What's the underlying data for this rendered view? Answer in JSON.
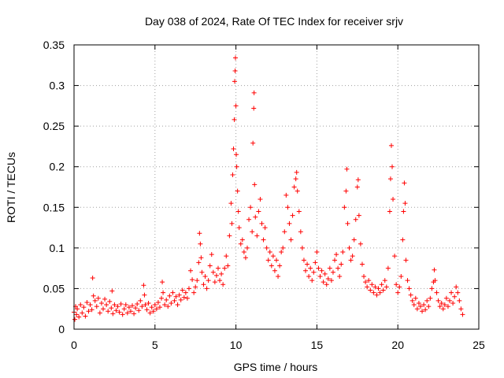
{
  "chart_data": {
    "type": "scatter",
    "title": "Day 038 of 2024, Rate Of TEC Index for receiver srjv",
    "xlabel": "GPS time / hours",
    "ylabel": "ROTI / TECUs",
    "xlim": [
      0,
      25
    ],
    "ylim": [
      0,
      0.35
    ],
    "grid": true,
    "marker": "+",
    "color": "#ff0000",
    "x_ticks": [
      0,
      5,
      10,
      15,
      20,
      25
    ],
    "x_tick_labels": [
      "0",
      "5",
      "10",
      "15",
      "20",
      "25"
    ],
    "y_ticks": [
      0,
      0.05,
      0.1,
      0.15,
      0.2,
      0.25,
      0.3,
      0.35
    ],
    "y_tick_labels": [
      "0",
      "0.05",
      "0.1",
      "0.15",
      "0.2",
      "0.25",
      "0.3",
      "0.35"
    ],
    "series": [
      {
        "name": "ROTI",
        "points": [
          [
            0.0,
            0.021
          ],
          [
            0.05,
            0.012
          ],
          [
            0.1,
            0.028
          ],
          [
            0.15,
            0.018
          ],
          [
            0.2,
            0.025
          ],
          [
            0.3,
            0.015
          ],
          [
            0.4,
            0.03
          ],
          [
            0.5,
            0.02
          ],
          [
            0.6,
            0.027
          ],
          [
            0.7,
            0.016
          ],
          [
            0.8,
            0.033
          ],
          [
            0.9,
            0.022
          ],
          [
            1.0,
            0.03
          ],
          [
            1.1,
            0.024
          ],
          [
            1.15,
            0.063
          ],
          [
            1.2,
            0.041
          ],
          [
            1.3,
            0.035
          ],
          [
            1.4,
            0.028
          ],
          [
            1.5,
            0.038
          ],
          [
            1.6,
            0.02
          ],
          [
            1.7,
            0.032
          ],
          [
            1.8,
            0.025
          ],
          [
            1.9,
            0.037
          ],
          [
            2.0,
            0.03
          ],
          [
            2.1,
            0.022
          ],
          [
            2.2,
            0.034
          ],
          [
            2.3,
            0.026
          ],
          [
            2.35,
            0.047
          ],
          [
            2.4,
            0.019
          ],
          [
            2.5,
            0.03
          ],
          [
            2.6,
            0.023
          ],
          [
            2.7,
            0.028
          ],
          [
            2.8,
            0.021
          ],
          [
            2.9,
            0.031
          ],
          [
            3.0,
            0.018
          ],
          [
            3.1,
            0.025
          ],
          [
            3.2,
            0.03
          ],
          [
            3.3,
            0.02
          ],
          [
            3.4,
            0.027
          ],
          [
            3.5,
            0.022
          ],
          [
            3.6,
            0.029
          ],
          [
            3.7,
            0.019
          ],
          [
            3.8,
            0.026
          ],
          [
            3.9,
            0.031
          ],
          [
            4.0,
            0.023
          ],
          [
            4.1,
            0.035
          ],
          [
            4.2,
            0.028
          ],
          [
            4.3,
            0.054
          ],
          [
            4.35,
            0.042
          ],
          [
            4.4,
            0.03
          ],
          [
            4.5,
            0.024
          ],
          [
            4.6,
            0.032
          ],
          [
            4.7,
            0.02
          ],
          [
            4.8,
            0.027
          ],
          [
            4.9,
            0.022
          ],
          [
            5.0,
            0.03
          ],
          [
            5.1,
            0.025
          ],
          [
            5.2,
            0.033
          ],
          [
            5.3,
            0.027
          ],
          [
            5.4,
            0.038
          ],
          [
            5.45,
            0.058
          ],
          [
            5.5,
            0.045
          ],
          [
            5.6,
            0.03
          ],
          [
            5.7,
            0.036
          ],
          [
            5.8,
            0.028
          ],
          [
            5.9,
            0.041
          ],
          [
            6.0,
            0.032
          ],
          [
            6.1,
            0.045
          ],
          [
            6.2,
            0.035
          ],
          [
            6.3,
            0.04
          ],
          [
            6.4,
            0.03
          ],
          [
            6.5,
            0.042
          ],
          [
            6.6,
            0.036
          ],
          [
            6.7,
            0.048
          ],
          [
            6.8,
            0.039
          ],
          [
            6.9,
            0.045
          ],
          [
            7.0,
            0.038
          ],
          [
            7.1,
            0.05
          ],
          [
            7.2,
            0.072
          ],
          [
            7.3,
            0.061
          ],
          [
            7.4,
            0.045
          ],
          [
            7.5,
            0.052
          ],
          [
            7.6,
            0.06
          ],
          [
            7.7,
            0.082
          ],
          [
            7.75,
            0.118
          ],
          [
            7.8,
            0.105
          ],
          [
            7.85,
            0.088
          ],
          [
            7.9,
            0.07
          ],
          [
            8.0,
            0.055
          ],
          [
            8.1,
            0.065
          ],
          [
            8.2,
            0.05
          ],
          [
            8.3,
            0.06
          ],
          [
            8.4,
            0.078
          ],
          [
            8.5,
            0.092
          ],
          [
            8.6,
            0.07
          ],
          [
            8.7,
            0.058
          ],
          [
            8.8,
            0.066
          ],
          [
            8.9,
            0.075
          ],
          [
            9.0,
            0.06
          ],
          [
            9.1,
            0.068
          ],
          [
            9.2,
            0.055
          ],
          [
            9.3,
            0.075
          ],
          [
            9.4,
            0.09
          ],
          [
            9.5,
            0.078
          ],
          [
            9.6,
            0.115
          ],
          [
            9.7,
            0.155
          ],
          [
            9.75,
            0.13
          ],
          [
            9.8,
            0.19
          ],
          [
            9.85,
            0.222
          ],
          [
            9.9,
            0.258
          ],
          [
            9.92,
            0.305
          ],
          [
            9.95,
            0.318
          ],
          [
            9.97,
            0.334
          ],
          [
            10.0,
            0.275
          ],
          [
            10.02,
            0.215
          ],
          [
            10.05,
            0.2
          ],
          [
            10.1,
            0.17
          ],
          [
            10.15,
            0.145
          ],
          [
            10.2,
            0.125
          ],
          [
            10.3,
            0.105
          ],
          [
            10.4,
            0.11
          ],
          [
            10.5,
            0.095
          ],
          [
            10.6,
            0.088
          ],
          [
            10.7,
            0.1
          ],
          [
            10.8,
            0.135
          ],
          [
            10.9,
            0.15
          ],
          [
            11.0,
            0.12
          ],
          [
            11.05,
            0.229
          ],
          [
            11.1,
            0.272
          ],
          [
            11.12,
            0.291
          ],
          [
            11.15,
            0.178
          ],
          [
            11.2,
            0.138
          ],
          [
            11.3,
            0.115
          ],
          [
            11.4,
            0.145
          ],
          [
            11.5,
            0.16
          ],
          [
            11.6,
            0.13
          ],
          [
            11.7,
            0.11
          ],
          [
            11.8,
            0.125
          ],
          [
            11.9,
            0.1
          ],
          [
            12.0,
            0.085
          ],
          [
            12.1,
            0.095
          ],
          [
            12.2,
            0.078
          ],
          [
            12.3,
            0.09
          ],
          [
            12.4,
            0.072
          ],
          [
            12.5,
            0.085
          ],
          [
            12.6,
            0.065
          ],
          [
            12.7,
            0.078
          ],
          [
            12.8,
            0.095
          ],
          [
            12.9,
            0.1
          ],
          [
            13.0,
            0.12
          ],
          [
            13.1,
            0.165
          ],
          [
            13.2,
            0.15
          ],
          [
            13.3,
            0.13
          ],
          [
            13.4,
            0.11
          ],
          [
            13.5,
            0.14
          ],
          [
            13.6,
            0.175
          ],
          [
            13.7,
            0.185
          ],
          [
            13.75,
            0.193
          ],
          [
            13.8,
            0.17
          ],
          [
            13.9,
            0.145
          ],
          [
            14.0,
            0.12
          ],
          [
            14.1,
            0.1
          ],
          [
            14.2,
            0.085
          ],
          [
            14.3,
            0.072
          ],
          [
            14.4,
            0.08
          ],
          [
            14.5,
            0.065
          ],
          [
            14.6,
            0.075
          ],
          [
            14.7,
            0.06
          ],
          [
            14.8,
            0.07
          ],
          [
            14.9,
            0.082
          ],
          [
            15.0,
            0.095
          ],
          [
            15.1,
            0.075
          ],
          [
            15.2,
            0.065
          ],
          [
            15.3,
            0.072
          ],
          [
            15.4,
            0.058
          ],
          [
            15.5,
            0.068
          ],
          [
            15.6,
            0.055
          ],
          [
            15.7,
            0.062
          ],
          [
            15.8,
            0.075
          ],
          [
            15.9,
            0.06
          ],
          [
            16.0,
            0.07
          ],
          [
            16.1,
            0.085
          ],
          [
            16.2,
            0.092
          ],
          [
            16.3,
            0.075
          ],
          [
            16.4,
            0.065
          ],
          [
            16.5,
            0.08
          ],
          [
            16.6,
            0.095
          ],
          [
            16.7,
            0.15
          ],
          [
            16.8,
            0.17
          ],
          [
            16.85,
            0.197
          ],
          [
            16.9,
            0.13
          ],
          [
            17.0,
            0.1
          ],
          [
            17.1,
            0.085
          ],
          [
            17.2,
            0.09
          ],
          [
            17.3,
            0.11
          ],
          [
            17.4,
            0.135
          ],
          [
            17.5,
            0.175
          ],
          [
            17.55,
            0.184
          ],
          [
            17.6,
            0.14
          ],
          [
            17.7,
            0.105
          ],
          [
            17.8,
            0.08
          ],
          [
            17.9,
            0.065
          ],
          [
            18.0,
            0.058
          ],
          [
            18.1,
            0.052
          ],
          [
            18.2,
            0.06
          ],
          [
            18.3,
            0.048
          ],
          [
            18.4,
            0.055
          ],
          [
            18.5,
            0.045
          ],
          [
            18.6,
            0.052
          ],
          [
            18.7,
            0.042
          ],
          [
            18.8,
            0.05
          ],
          [
            18.9,
            0.045
          ],
          [
            19.0,
            0.055
          ],
          [
            19.1,
            0.048
          ],
          [
            19.2,
            0.06
          ],
          [
            19.3,
            0.052
          ],
          [
            19.4,
            0.075
          ],
          [
            19.5,
            0.145
          ],
          [
            19.55,
            0.185
          ],
          [
            19.6,
            0.226
          ],
          [
            19.65,
            0.2
          ],
          [
            19.7,
            0.16
          ],
          [
            19.8,
            0.09
          ],
          [
            19.9,
            0.055
          ],
          [
            20.0,
            0.045
          ],
          [
            20.1,
            0.052
          ],
          [
            20.2,
            0.065
          ],
          [
            20.3,
            0.11
          ],
          [
            20.35,
            0.145
          ],
          [
            20.4,
            0.18
          ],
          [
            20.45,
            0.155
          ],
          [
            20.5,
            0.085
          ],
          [
            20.6,
            0.06
          ],
          [
            20.7,
            0.05
          ],
          [
            20.8,
            0.042
          ],
          [
            20.9,
            0.035
          ],
          [
            21.0,
            0.03
          ],
          [
            21.1,
            0.038
          ],
          [
            21.2,
            0.025
          ],
          [
            21.3,
            0.032
          ],
          [
            21.4,
            0.028
          ],
          [
            21.5,
            0.022
          ],
          [
            21.6,
            0.03
          ],
          [
            21.7,
            0.024
          ],
          [
            21.8,
            0.035
          ],
          [
            21.9,
            0.028
          ],
          [
            22.0,
            0.038
          ],
          [
            22.1,
            0.05
          ],
          [
            22.2,
            0.058
          ],
          [
            22.25,
            0.073
          ],
          [
            22.3,
            0.06
          ],
          [
            22.4,
            0.045
          ],
          [
            22.5,
            0.035
          ],
          [
            22.6,
            0.028
          ],
          [
            22.7,
            0.032
          ],
          [
            22.8,
            0.025
          ],
          [
            22.9,
            0.03
          ],
          [
            23.0,
            0.038
          ],
          [
            23.1,
            0.028
          ],
          [
            23.2,
            0.035
          ],
          [
            23.3,
            0.045
          ],
          [
            23.4,
            0.032
          ],
          [
            23.5,
            0.04
          ],
          [
            23.6,
            0.052
          ],
          [
            23.7,
            0.045
          ],
          [
            23.8,
            0.035
          ],
          [
            23.9,
            0.025
          ],
          [
            24.0,
            0.018
          ]
        ]
      }
    ]
  }
}
